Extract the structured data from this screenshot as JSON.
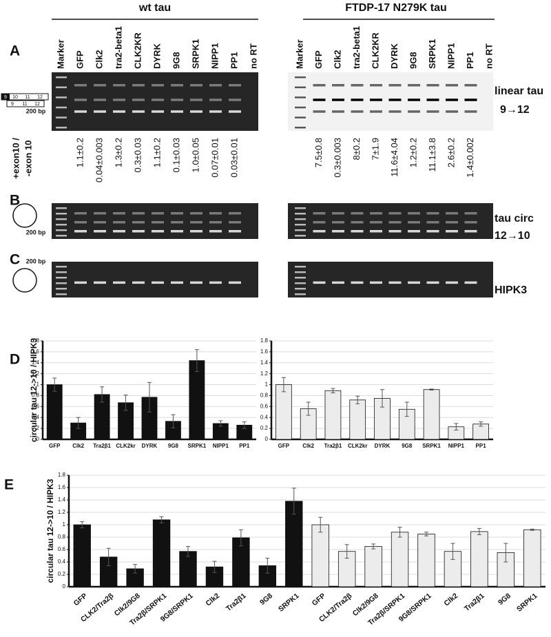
{
  "panel_labels": [
    "A",
    "B",
    "C",
    "D",
    "E"
  ],
  "gels": {
    "groups": [
      "wt tau",
      "FTDP-17 N279K tau"
    ],
    "lanes": [
      [
        "Marker",
        "GFP",
        "Clk2",
        "tra2-beta1",
        "CLK2KR",
        "DYRK",
        "9G8",
        "SRPK1",
        "NIPP1",
        "PP1",
        "no RT"
      ],
      [
        "Marker",
        "GFP",
        "Clk2",
        "tra2-beta1",
        "CLK2KR",
        "DYRK",
        "9G8",
        "SRPK1",
        "NIPP1",
        "PP1",
        "no RT"
      ]
    ],
    "ratio_label": [
      "+exon10 /",
      "-exon 10"
    ],
    "ratios": [
      [
        "1.1±0.2",
        "0.04±0.003",
        "1.3±0.2",
        "0.3±0.03",
        "1.1±0.2",
        "0.1±0.03",
        "1.0±0.05",
        "0.07±0.01",
        "0.03±0.01"
      ],
      [
        "7.5±0.8",
        "0.3±0.003",
        "8±0.2",
        "7±1.9",
        "11.6±4.04",
        "1.2±0.2",
        "11.1±3.8",
        "2.6±0.2",
        "1.4±0.002"
      ]
    ],
    "size_marker": [
      "200 bp",
      "200 bp",
      "200 bp"
    ],
    "exon_boxes": [
      [
        "9",
        "10",
        "11",
        "12"
      ],
      [
        "9",
        "11",
        "12"
      ]
    ],
    "row_labels": [
      [
        "linear tau",
        "9→12"
      ],
      [
        "tau circ",
        "12→10"
      ],
      [
        "HIPK3"
      ]
    ]
  },
  "chart_data": [
    {
      "type": "bar",
      "ylabel": "circular tau 12->10 / HIPK3",
      "categories": [
        "GFP",
        "Clk2",
        "Tra2β1",
        "CLK2kr",
        "DYRK",
        "9G8",
        "SRPK1",
        "NIPP1",
        "PP1"
      ],
      "values": [
        1.0,
        0.3,
        0.82,
        0.67,
        0.77,
        0.33,
        1.44,
        0.29,
        0.26
      ],
      "errors": [
        0.12,
        0.1,
        0.14,
        0.14,
        0.27,
        0.12,
        0.2,
        0.05,
        0.06
      ],
      "color": "#111111",
      "ylim": [
        0,
        1.8
      ],
      "yticks": [
        0,
        0.2,
        0.4,
        0.6,
        0.8,
        1,
        1.2,
        1.4,
        1.6,
        1.8
      ],
      "grid": true
    },
    {
      "type": "bar",
      "categories": [
        "GFP",
        "Clk2",
        "Tra2β1",
        "CLK2kr",
        "DYRK",
        "9G8",
        "SRPK1",
        "NIPP1",
        "PP1"
      ],
      "values": [
        1.0,
        0.56,
        0.89,
        0.72,
        0.75,
        0.55,
        0.91,
        0.23,
        0.28
      ],
      "errors": [
        0.13,
        0.12,
        0.04,
        0.07,
        0.16,
        0.13,
        0.01,
        0.06,
        0.04
      ],
      "color": "#ececec",
      "ylim": [
        0,
        1.8
      ],
      "yticks": [
        0,
        0.2,
        0.4,
        0.6,
        0.8,
        1,
        1.2,
        1.4,
        1.6,
        1.8
      ],
      "grid": true
    },
    {
      "type": "bar",
      "ylabel": "circular tau 12->10 / HIPK3",
      "categories": [
        "GFP",
        "CLK2/Tra2β",
        "Clk2/9G8",
        "Tra2β/SRPK1",
        "9G8/SRPK1",
        "Clk2",
        "Tra2β1",
        "9G8",
        "SRPK1",
        "GFP",
        "CLK2/Tra2β",
        "Clk2/9G8",
        "Tra2β/SRPK1",
        "9G8/SRPK1",
        "Clk2",
        "Tra2β1",
        "9G8",
        "SRPK1"
      ],
      "values": [
        1.0,
        0.48,
        0.29,
        1.08,
        0.57,
        0.32,
        0.79,
        0.34,
        1.38,
        1.0,
        0.57,
        0.65,
        0.88,
        0.85,
        0.57,
        0.89,
        0.55,
        0.92
      ],
      "errors": [
        0.05,
        0.14,
        0.07,
        0.05,
        0.08,
        0.09,
        0.13,
        0.12,
        0.21,
        0.12,
        0.11,
        0.04,
        0.08,
        0.03,
        0.13,
        0.05,
        0.15,
        0.01
      ],
      "colors": [
        "#111111",
        "#111111",
        "#111111",
        "#111111",
        "#111111",
        "#111111",
        "#111111",
        "#111111",
        "#111111",
        "#ececec",
        "#ececec",
        "#ececec",
        "#ececec",
        "#ececec",
        "#ececec",
        "#ececec",
        "#ececec",
        "#ececec"
      ],
      "ylim": [
        0,
        1.8
      ],
      "yticks": [
        0,
        0.2,
        0.4,
        0.6,
        0.8,
        1,
        1.2,
        1.4,
        1.6,
        1.8
      ],
      "grid": true
    }
  ]
}
